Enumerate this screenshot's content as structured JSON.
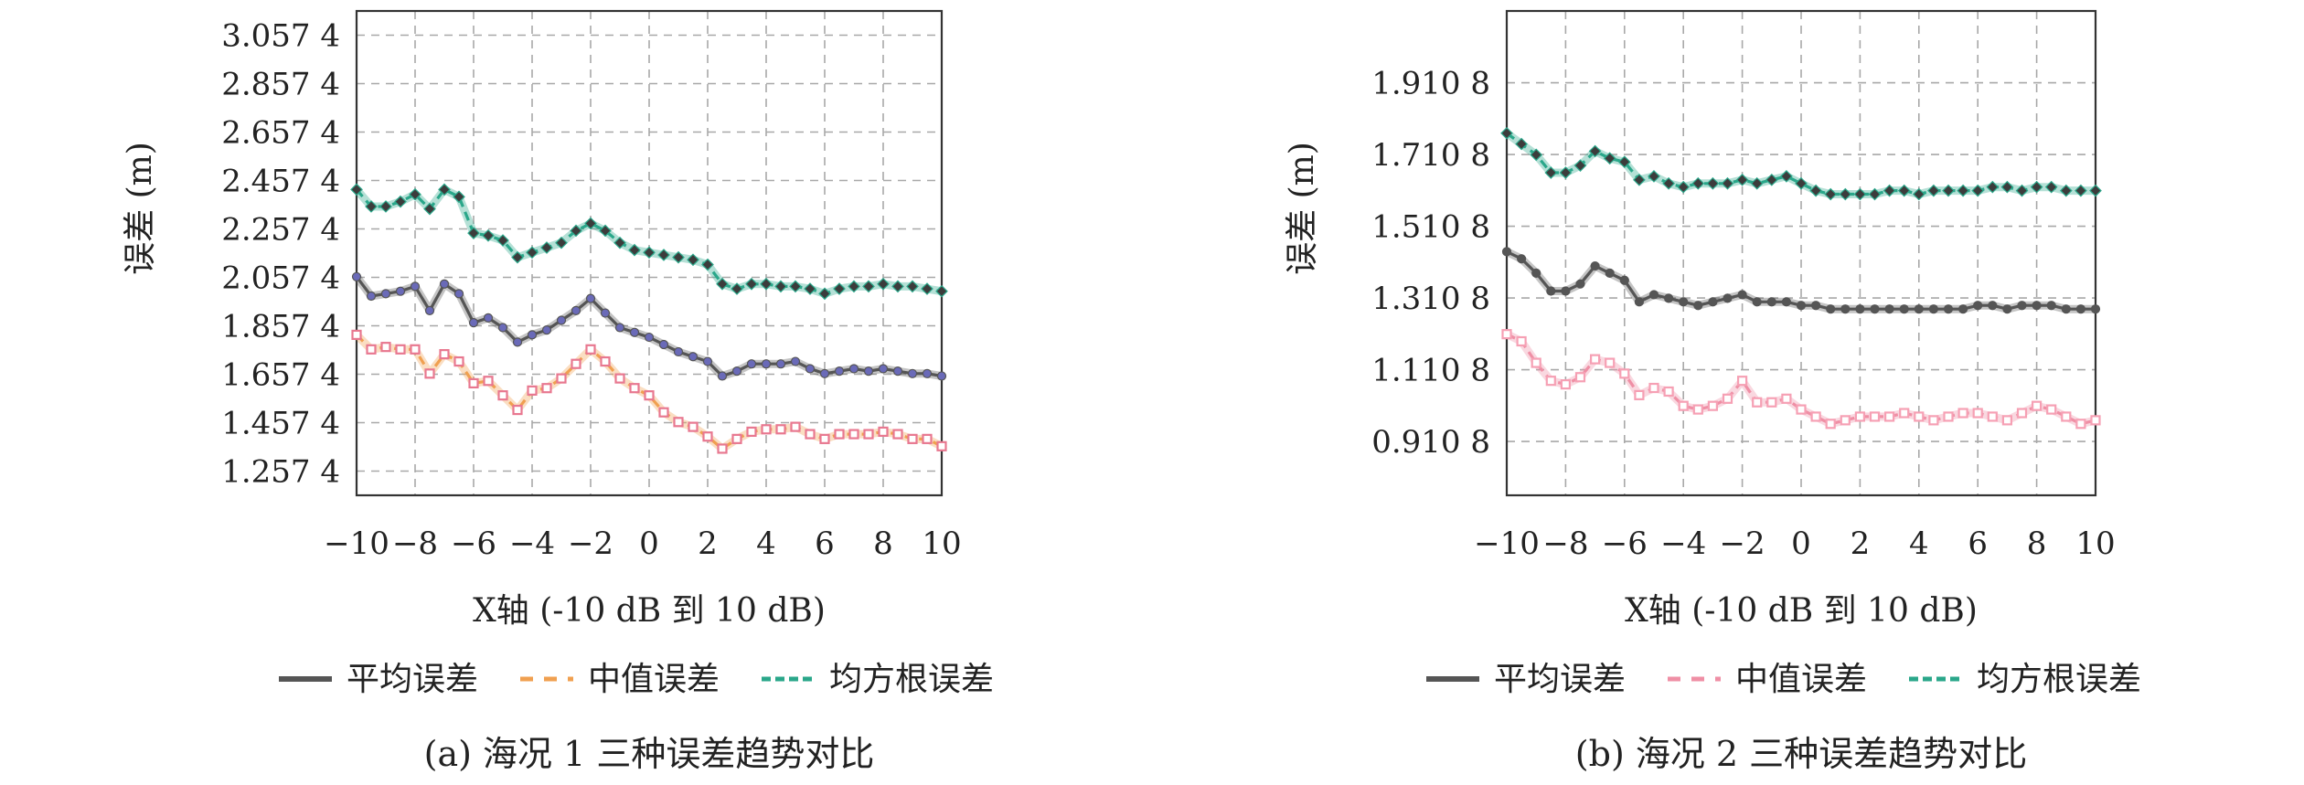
{
  "chart_data": [
    {
      "type": "line",
      "caption": "(a) 海况 1 三种误差趋势对比",
      "xlabel": "X轴 (-10 dB 到 10 dB)",
      "ylabel": "误差 (m)",
      "xlim": [
        -10,
        10
      ],
      "ylim": [
        1.1574,
        3.1574
      ],
      "x_ticks": [
        -10,
        -8,
        -6,
        -4,
        -2,
        0,
        2,
        4,
        6,
        8,
        10
      ],
      "x_tick_labels": [
        "−10",
        "−8",
        "−6",
        "−4",
        "−2",
        "0",
        "2",
        "4",
        "6",
        "8",
        "10"
      ],
      "y_ticks": [
        1.2574,
        1.4574,
        1.6574,
        1.8574,
        2.0574,
        2.2574,
        2.4574,
        2.6574,
        2.8574,
        3.0574
      ],
      "y_tick_labels": [
        "1.257 4",
        "1.457 4",
        "1.657 4",
        "1.857 4",
        "2.057 4",
        "2.257 4",
        "2.457 4",
        "2.657 4",
        "2.857 4",
        "3.057 4"
      ],
      "grid": true,
      "legend_position": "bottom",
      "x": [
        -10,
        -9.5,
        -9,
        -8.5,
        -8,
        -7.5,
        -7,
        -6.5,
        -6,
        -5.5,
        -5,
        -4.5,
        -4,
        -3.5,
        -3,
        -2.5,
        -2,
        -1.5,
        -1,
        -0.5,
        0,
        0.5,
        1,
        1.5,
        2,
        2.5,
        3,
        3.5,
        4,
        4.5,
        5,
        5.5,
        6,
        6.5,
        7,
        7.5,
        8,
        8.5,
        9,
        9.5,
        10
      ],
      "series": [
        {
          "name": "平均误差",
          "color": "#555555",
          "marker_color": "#6a6ab8",
          "values": [
            2.06,
            1.98,
            1.99,
            2.0,
            2.02,
            1.92,
            2.03,
            1.99,
            1.87,
            1.89,
            1.85,
            1.79,
            1.82,
            1.84,
            1.88,
            1.92,
            1.97,
            1.91,
            1.85,
            1.83,
            1.81,
            1.78,
            1.75,
            1.73,
            1.71,
            1.65,
            1.67,
            1.7,
            1.7,
            1.7,
            1.71,
            1.68,
            1.66,
            1.67,
            1.68,
            1.67,
            1.68,
            1.67,
            1.66,
            1.66,
            1.65
          ]
        },
        {
          "name": "中值误差",
          "color": "#f0a050",
          "marker_color": "#e87890",
          "values": [
            1.82,
            1.76,
            1.77,
            1.76,
            1.76,
            1.66,
            1.74,
            1.71,
            1.62,
            1.63,
            1.57,
            1.51,
            1.59,
            1.6,
            1.64,
            1.7,
            1.76,
            1.71,
            1.64,
            1.6,
            1.57,
            1.5,
            1.46,
            1.44,
            1.4,
            1.35,
            1.39,
            1.42,
            1.43,
            1.43,
            1.44,
            1.41,
            1.39,
            1.41,
            1.41,
            1.41,
            1.42,
            1.41,
            1.39,
            1.39,
            1.36
          ]
        },
        {
          "name": "均方根误差",
          "color": "#2aa78a",
          "marker_color": "#3c3c3c",
          "values": [
            2.42,
            2.35,
            2.35,
            2.37,
            2.4,
            2.34,
            2.42,
            2.39,
            2.24,
            2.23,
            2.21,
            2.14,
            2.16,
            2.18,
            2.2,
            2.25,
            2.28,
            2.25,
            2.2,
            2.17,
            2.16,
            2.15,
            2.14,
            2.13,
            2.11,
            2.03,
            2.01,
            2.03,
            2.03,
            2.02,
            2.02,
            2.01,
            1.99,
            2.01,
            2.02,
            2.02,
            2.03,
            2.02,
            2.02,
            2.01,
            2.0
          ]
        }
      ]
    },
    {
      "type": "line",
      "caption": "(b) 海况 2 三种误差趋势对比",
      "xlabel": "X轴 (-10 dB 到 10 dB)",
      "ylabel": "误差 (m)",
      "xlim": [
        -10,
        10
      ],
      "ylim": [
        0.7608,
        2.1108
      ],
      "x_ticks": [
        -10,
        -8,
        -6,
        -4,
        -2,
        0,
        2,
        4,
        6,
        8,
        10
      ],
      "x_tick_labels": [
        "−10",
        "−8",
        "−6",
        "−4",
        "−2",
        "0",
        "2",
        "4",
        "6",
        "8",
        "10"
      ],
      "y_ticks": [
        0.9108,
        1.1108,
        1.3108,
        1.5108,
        1.7108,
        1.9108
      ],
      "y_tick_labels": [
        "0.910 8",
        "1.110 8",
        "1.310 8",
        "1.510 8",
        "1.710 8",
        "1.910 8"
      ],
      "grid": true,
      "legend_position": "bottom",
      "x": [
        -10,
        -9.5,
        -9,
        -8.5,
        -8,
        -7.5,
        -7,
        -6.5,
        -6,
        -5.5,
        -5,
        -4.5,
        -4,
        -3.5,
        -3,
        -2.5,
        -2,
        -1.5,
        -1,
        -0.5,
        0,
        0.5,
        1,
        1.5,
        2,
        2.5,
        3,
        3.5,
        4,
        4.5,
        5,
        5.5,
        6,
        6.5,
        7,
        7.5,
        8,
        8.5,
        9,
        9.5,
        10
      ],
      "series": [
        {
          "name": "平均误差",
          "color": "#555555",
          "marker_color": "#555555",
          "values": [
            1.44,
            1.42,
            1.38,
            1.33,
            1.33,
            1.35,
            1.4,
            1.38,
            1.36,
            1.3,
            1.32,
            1.31,
            1.3,
            1.29,
            1.3,
            1.31,
            1.32,
            1.3,
            1.3,
            1.3,
            1.29,
            1.29,
            1.28,
            1.28,
            1.28,
            1.28,
            1.28,
            1.28,
            1.28,
            1.28,
            1.28,
            1.28,
            1.29,
            1.29,
            1.28,
            1.29,
            1.29,
            1.29,
            1.28,
            1.28,
            1.28
          ]
        },
        {
          "name": "中值误差",
          "color": "#ef8fa5",
          "marker_color": "#f6a0b4",
          "values": [
            1.21,
            1.19,
            1.13,
            1.08,
            1.07,
            1.09,
            1.14,
            1.13,
            1.1,
            1.04,
            1.06,
            1.05,
            1.01,
            1.0,
            1.01,
            1.03,
            1.08,
            1.02,
            1.02,
            1.03,
            1.0,
            0.98,
            0.96,
            0.97,
            0.98,
            0.98,
            0.98,
            0.99,
            0.98,
            0.97,
            0.98,
            0.99,
            0.99,
            0.98,
            0.97,
            0.99,
            1.01,
            1.0,
            0.98,
            0.96,
            0.97
          ]
        },
        {
          "name": "均方根误差",
          "color": "#2aa78a",
          "marker_color": "#3c3c3c",
          "values": [
            1.77,
            1.74,
            1.71,
            1.66,
            1.66,
            1.68,
            1.72,
            1.7,
            1.69,
            1.64,
            1.65,
            1.63,
            1.62,
            1.63,
            1.63,
            1.63,
            1.64,
            1.63,
            1.64,
            1.65,
            1.63,
            1.61,
            1.6,
            1.6,
            1.6,
            1.6,
            1.61,
            1.61,
            1.6,
            1.61,
            1.61,
            1.61,
            1.61,
            1.62,
            1.62,
            1.61,
            1.62,
            1.62,
            1.61,
            1.61,
            1.61
          ]
        }
      ]
    }
  ]
}
